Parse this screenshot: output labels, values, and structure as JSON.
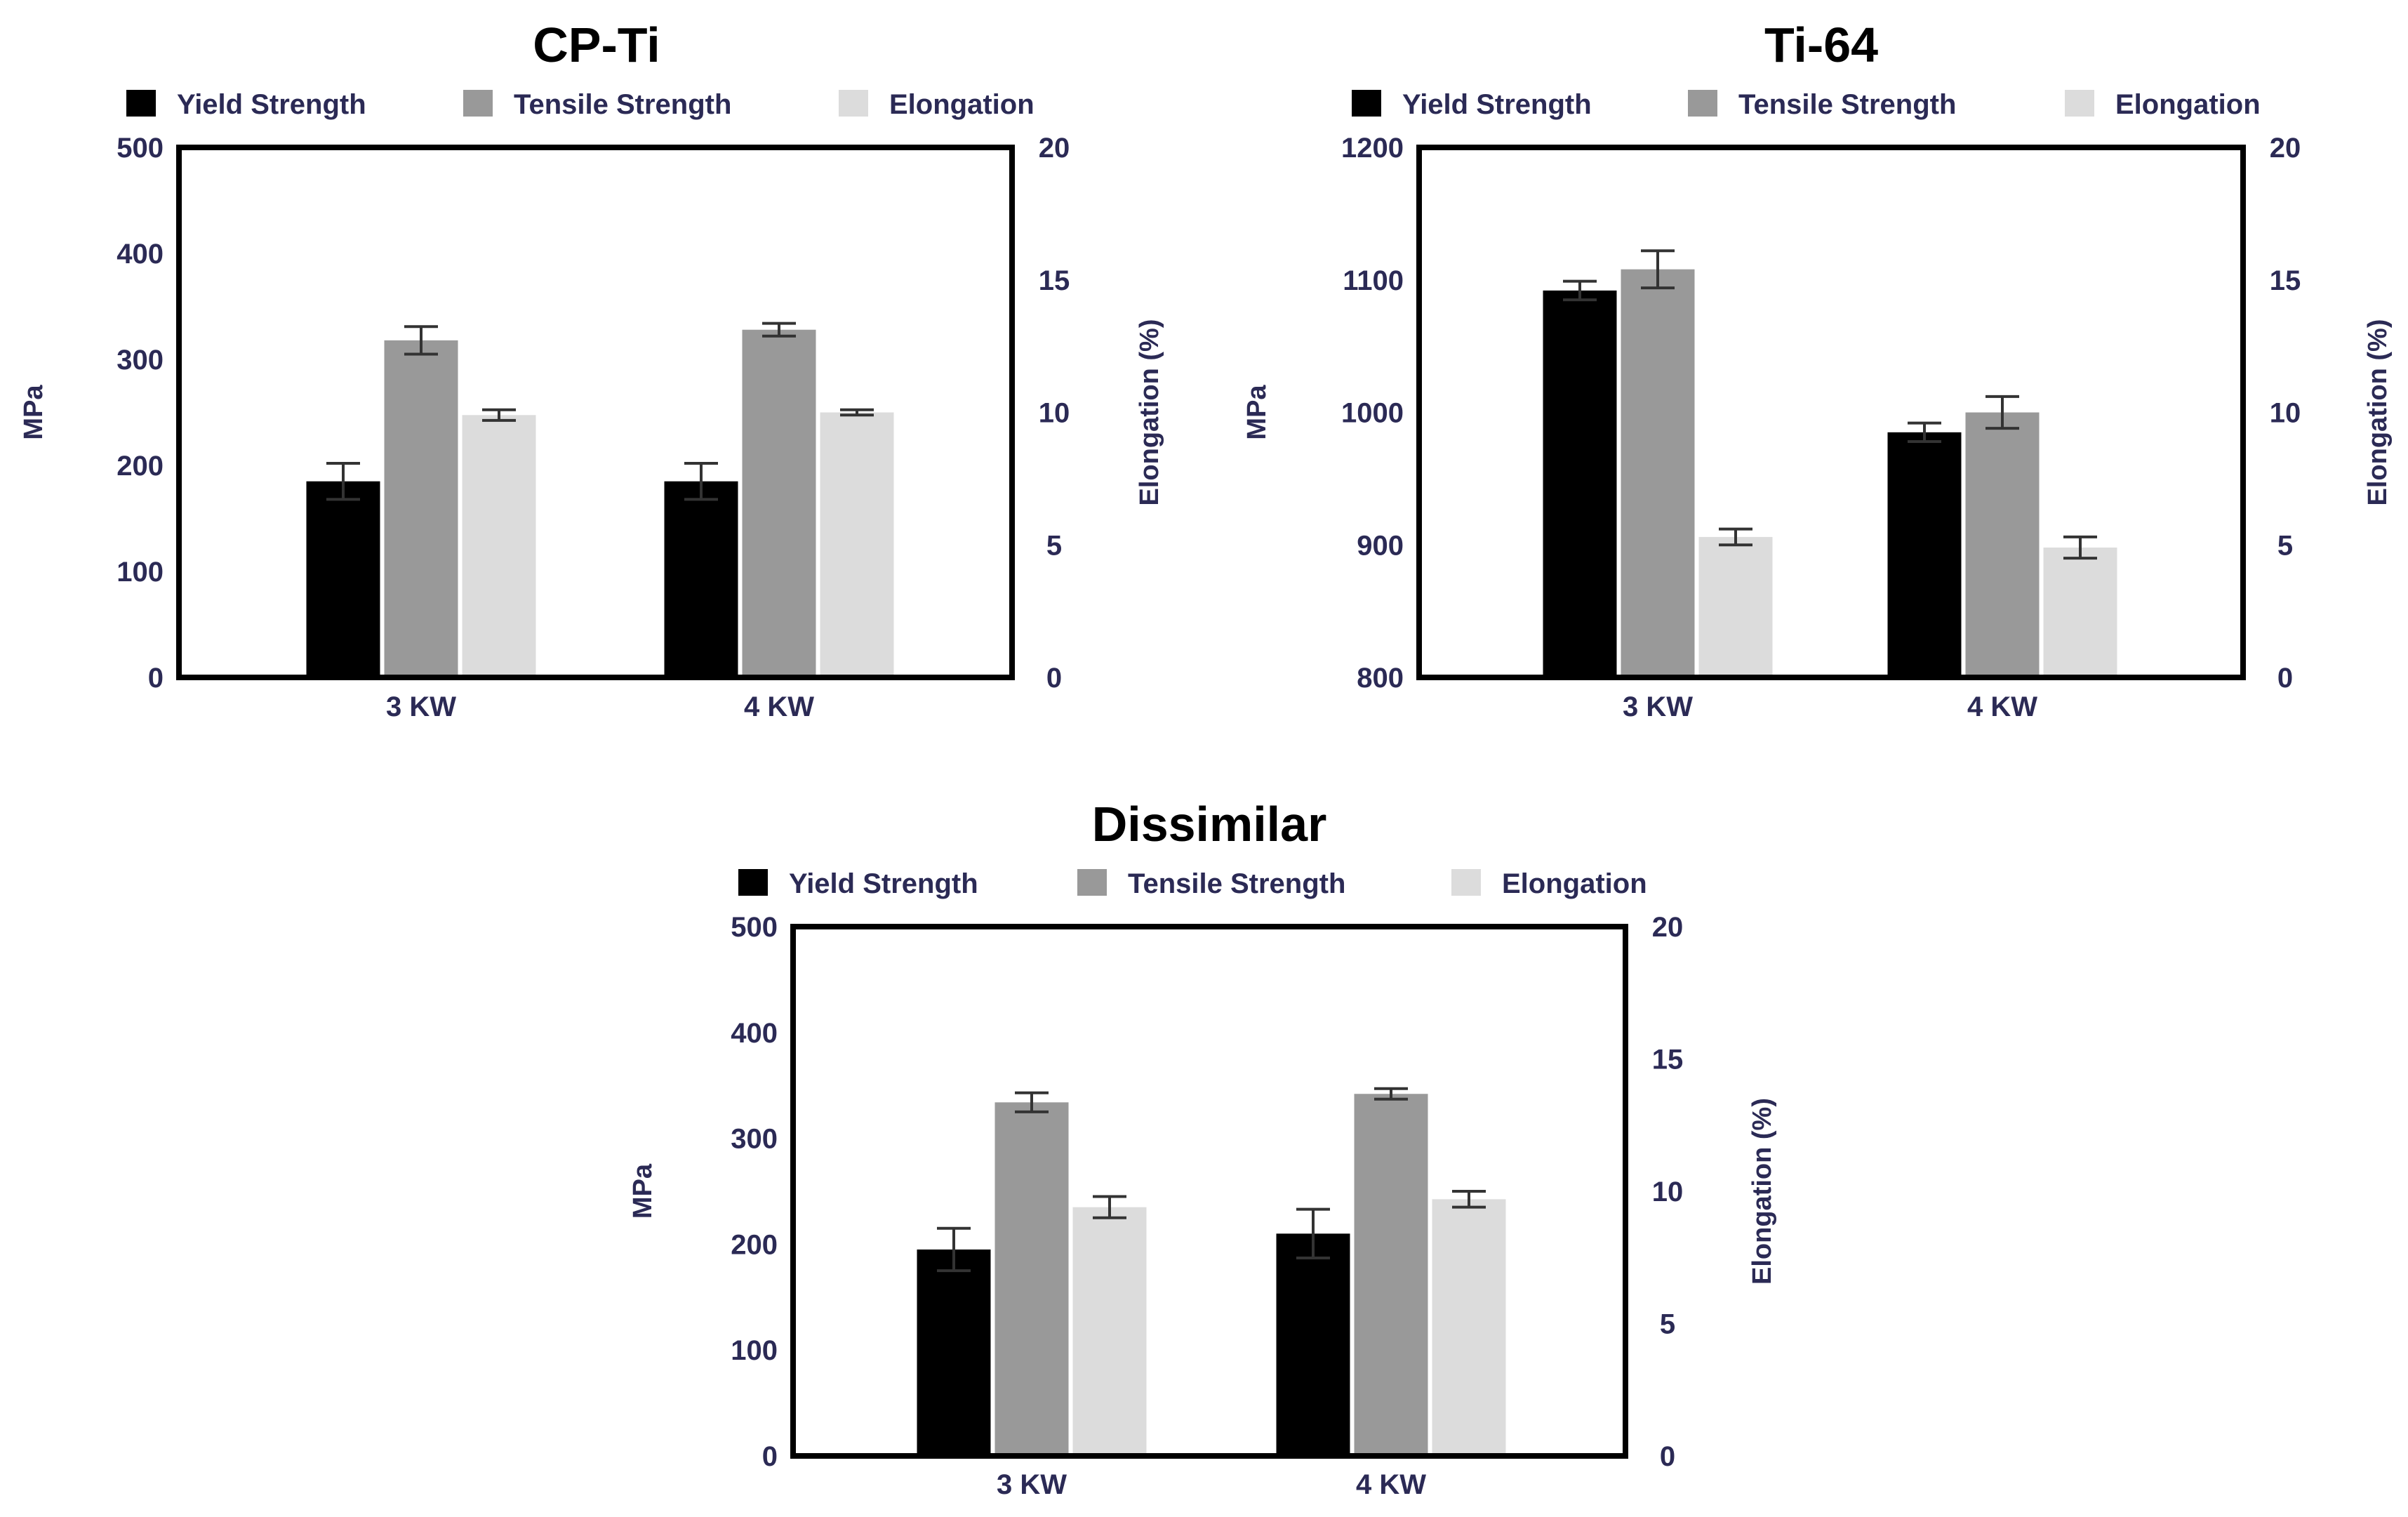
{
  "colors": {
    "yield": "#000000",
    "tensile": "#999999",
    "elongation": "#dcdcdc",
    "text": "#2b2a55",
    "frame": "#000000",
    "errorbar": "#333333"
  },
  "chart_data": [
    {
      "type": "bar",
      "title": "CP-Ti",
      "categories": [
        "3 KW",
        "4 KW"
      ],
      "legend": [
        "Yield Strength",
        "Tensile Strength",
        "Elongation"
      ],
      "ylabel": "MPa",
      "y2label": "Elongation (%)",
      "ylim": [
        0,
        500
      ],
      "y2lim": [
        0,
        20
      ],
      "yticks": [
        "0",
        "100",
        "200",
        "300",
        "400",
        "500"
      ],
      "y2ticks": [
        "0",
        "5",
        "10",
        "15",
        "20"
      ],
      "series": [
        {
          "name": "Yield Strength",
          "axis": "left",
          "values": [
            185,
            185
          ],
          "errors": [
            17,
            17
          ]
        },
        {
          "name": "Tensile Strength",
          "axis": "left",
          "values": [
            318,
            328
          ],
          "errors": [
            13,
            6
          ]
        },
        {
          "name": "Elongation",
          "axis": "right",
          "values": [
            9.9,
            10.0
          ],
          "errors": [
            0.2,
            0.1
          ]
        }
      ]
    },
    {
      "type": "bar",
      "title": "Ti-64",
      "categories": [
        "3 KW",
        "4 KW"
      ],
      "legend": [
        "Yield Strength",
        "Tensile Strength",
        "Elongation"
      ],
      "ylabel": "MPa",
      "y2label": "Elongation (%)",
      "ylim": [
        800,
        1200
      ],
      "y2lim": [
        0,
        20
      ],
      "yticks": [
        "800",
        "900",
        "1000",
        "1100",
        "1200"
      ],
      "y2ticks": [
        "0",
        "5",
        "10",
        "15",
        "20"
      ],
      "series": [
        {
          "name": "Yield Strength",
          "axis": "left",
          "values": [
            1092,
            985
          ],
          "errors": [
            7,
            7
          ]
        },
        {
          "name": "Tensile Strength",
          "axis": "left",
          "values": [
            1108,
            1000
          ],
          "errors": [
            14,
            12
          ]
        },
        {
          "name": "Elongation",
          "axis": "right",
          "values": [
            5.3,
            4.9
          ],
          "errors": [
            0.3,
            0.4
          ]
        }
      ]
    },
    {
      "type": "bar",
      "title": "Dissimilar",
      "categories": [
        "3 KW",
        "4 KW"
      ],
      "legend": [
        "Yield Strength",
        "Tensile Strength",
        "Elongation"
      ],
      "ylabel": "MPa",
      "y2label": "Elongation (%)",
      "ylim": [
        0,
        500
      ],
      "y2lim": [
        0,
        20
      ],
      "yticks": [
        "0",
        "100",
        "200",
        "300",
        "400",
        "500"
      ],
      "y2ticks": [
        "0",
        "5",
        "10",
        "15",
        "20"
      ],
      "series": [
        {
          "name": "Yield Strength",
          "axis": "left",
          "values": [
            195,
            210
          ],
          "errors": [
            20,
            23
          ]
        },
        {
          "name": "Tensile Strength",
          "axis": "left",
          "values": [
            334,
            342
          ],
          "errors": [
            9,
            5
          ]
        },
        {
          "name": "Elongation",
          "axis": "right",
          "values": [
            9.4,
            9.7
          ],
          "errors": [
            0.4,
            0.3
          ]
        }
      ]
    }
  ]
}
